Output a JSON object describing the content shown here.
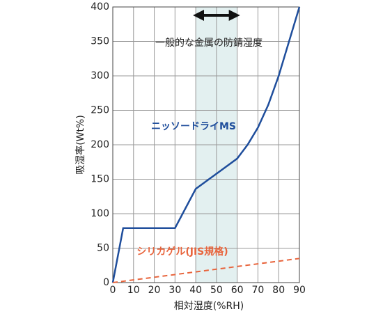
{
  "chart_data": {
    "type": "line",
    "xlabel": "相対湿度(%RH)",
    "ylabel": "吸湿率(Wt%)",
    "annotation": "一般的な金属の防錆湿度",
    "shaded_range": [
      40,
      60
    ],
    "shaded_color": "#e3f0f0",
    "xlim": [
      0,
      90
    ],
    "ylim": [
      0,
      400
    ],
    "xticks": [
      0,
      10,
      20,
      30,
      40,
      50,
      60,
      70,
      80,
      90
    ],
    "yticks": [
      0,
      50,
      100,
      150,
      200,
      250,
      300,
      350,
      400
    ],
    "grid": true,
    "series": [
      {
        "name": "ニッソードライMS",
        "color": "#1f4e9c",
        "dashed": false,
        "x": [
          0,
          5,
          30,
          40,
          50,
          60,
          62,
          65,
          70,
          75,
          80,
          85,
          90
        ],
        "values": [
          0,
          79,
          79,
          136,
          158,
          180,
          188,
          200,
          225,
          258,
          300,
          350,
          400
        ]
      },
      {
        "name": "シリカゲル(JIS規格)",
        "color": "#e8643c",
        "dashed": true,
        "x": [
          0,
          90
        ],
        "values": [
          0,
          35
        ]
      }
    ]
  }
}
